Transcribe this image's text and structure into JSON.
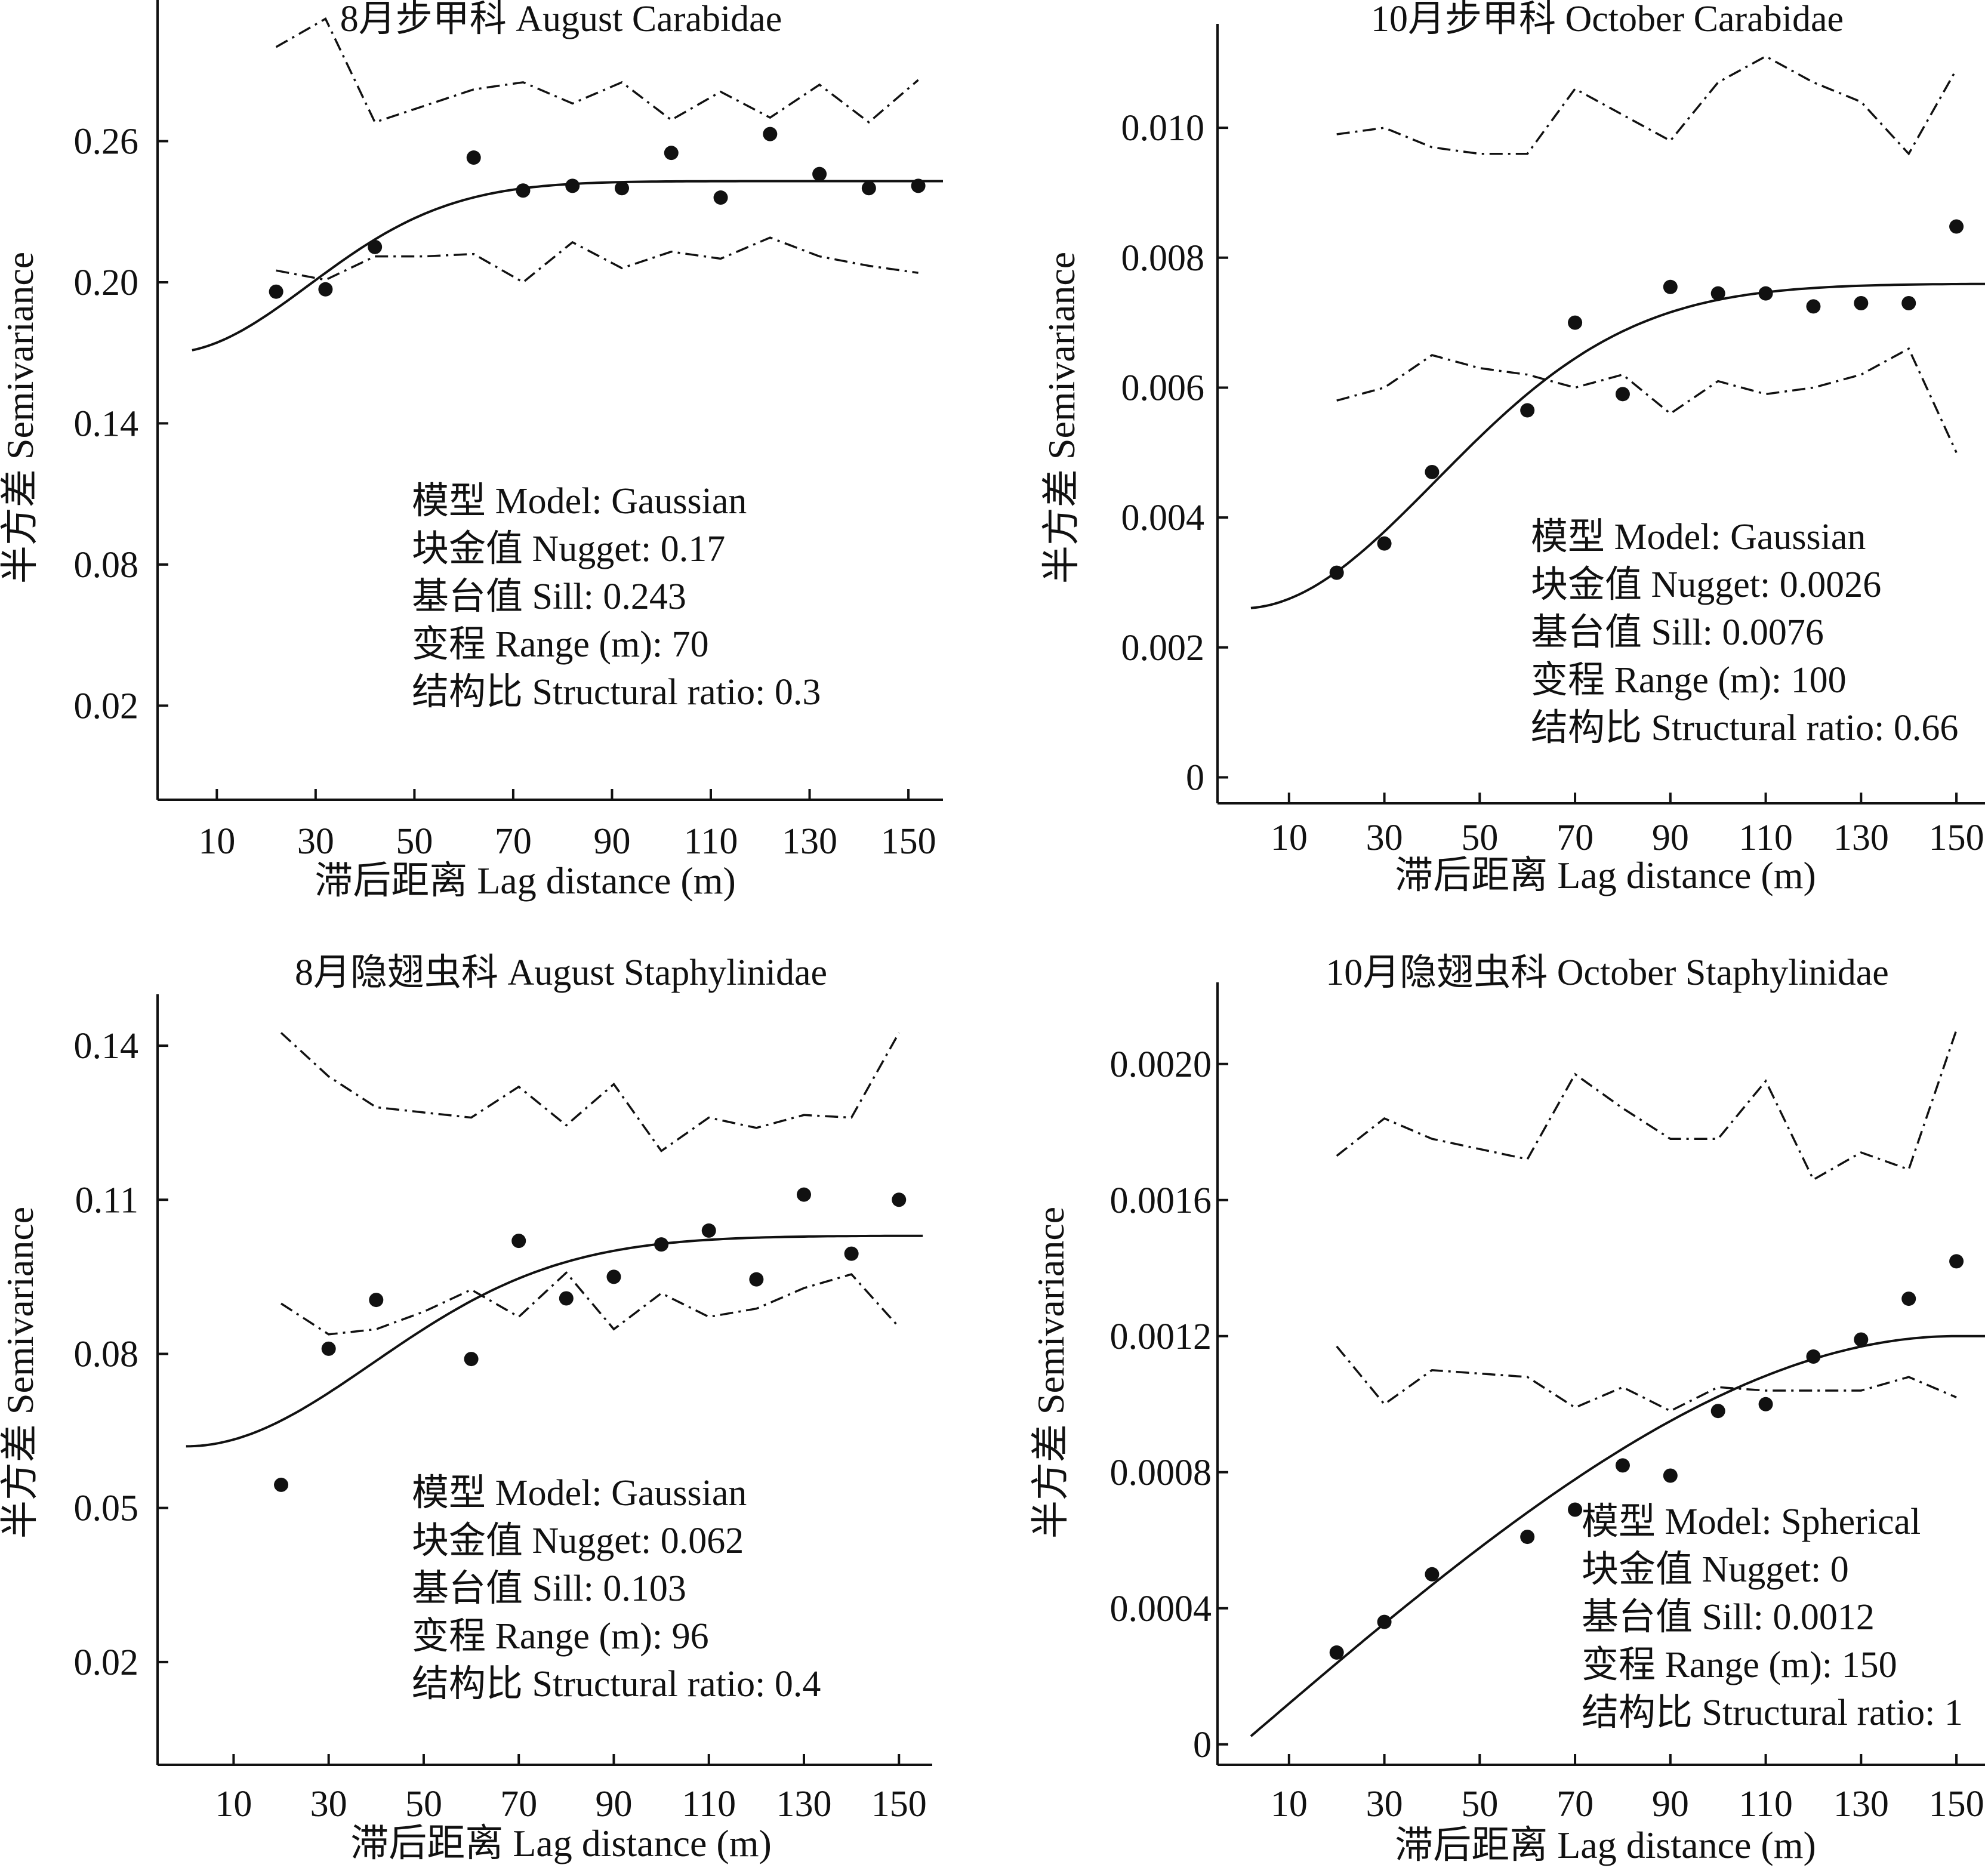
{
  "chart_data": [
    {
      "type": "scatter",
      "title": "8月步甲科 August Carabidae",
      "xlabel": "滞后距离 Lag distance (m)",
      "ylabel": "半方差 Semivariance",
      "xlim": [
        -2,
        157
      ],
      "ylim": [
        -0.02,
        0.32
      ],
      "xticks": [
        10,
        30,
        50,
        70,
        90,
        110,
        130,
        150
      ],
      "yticks": [
        0.02,
        0.08,
        0.14,
        0.2,
        0.26
      ],
      "ytick_labels": [
        "0.02",
        "0.08",
        "0.14",
        "0.20",
        "0.26"
      ],
      "series": [
        {
          "role": "points",
          "x": [
            22,
            32,
            42,
            62,
            72,
            82,
            92,
            102,
            112,
            122,
            132,
            142,
            152
          ],
          "y": [
            0.196,
            0.197,
            0.215,
            0.253,
            0.239,
            0.241,
            0.24,
            0.255,
            0.236,
            0.263,
            0.246,
            0.24,
            0.241
          ]
        },
        {
          "role": "model",
          "model": "gaussian",
          "nugget": 0.17,
          "sill": 0.243,
          "range": 70,
          "x_start": 5,
          "x_end": 157
        },
        {
          "role": "upper-envelope",
          "x": [
            22,
            32,
            42,
            52,
            62,
            72,
            82,
            92,
            102,
            112,
            122,
            132,
            142,
            152
          ],
          "y": [
            0.3,
            0.312,
            0.268,
            0.275,
            0.282,
            0.285,
            0.276,
            0.285,
            0.269,
            0.281,
            0.27,
            0.284,
            0.268,
            0.286
          ]
        },
        {
          "role": "lower-envelope",
          "x": [
            22,
            32,
            42,
            52,
            62,
            72,
            82,
            92,
            102,
            112,
            122,
            132,
            142,
            152
          ],
          "y": [
            0.205,
            0.201,
            0.211,
            0.211,
            0.212,
            0.2,
            0.217,
            0.206,
            0.213,
            0.21,
            0.219,
            0.211,
            0.207,
            0.204
          ]
        }
      ],
      "annotations": [
        "模型 Model: Gaussian",
        "块金值 Nugget: 0.17",
        "基台值 Sill: 0.243",
        "变程 Range (m): 70",
        "结构比 Structural ratio: 0.3"
      ]
    },
    {
      "type": "scatter",
      "title": "10月步甲科 October Carabidae",
      "xlabel": "滞后距离 Lag distance (m)",
      "ylabel": "半方差 Semivariance",
      "xlim": [
        -5,
        156
      ],
      "ylim": [
        -0.0004,
        0.0116
      ],
      "xticks": [
        10,
        30,
        50,
        70,
        90,
        110,
        130,
        150
      ],
      "yticks": [
        0,
        0.002,
        0.004,
        0.006,
        0.008,
        0.01
      ],
      "ytick_labels": [
        "0",
        "0.002",
        "0.004",
        "0.006",
        "0.008",
        "0.010"
      ],
      "series": [
        {
          "role": "points",
          "x": [
            20,
            30,
            40,
            60,
            70,
            80,
            90,
            100,
            110,
            120,
            130,
            140,
            150
          ],
          "y": [
            0.00315,
            0.0036,
            0.0047,
            0.00565,
            0.007,
            0.0059,
            0.00755,
            0.00745,
            0.00745,
            0.00725,
            0.0073,
            0.0073,
            0.00848
          ]
        },
        {
          "role": "model",
          "model": "gaussian",
          "nugget": 0.0026,
          "sill": 0.0076,
          "range": 100,
          "x_start": 2,
          "x_end": 156
        },
        {
          "role": "upper-envelope",
          "x": [
            20,
            30,
            40,
            50,
            60,
            70,
            80,
            90,
            100,
            110,
            120,
            130,
            140,
            150
          ],
          "y": [
            0.0099,
            0.01,
            0.0097,
            0.0096,
            0.0096,
            0.0106,
            0.0102,
            0.0098,
            0.0107,
            0.0111,
            0.0107,
            0.0104,
            0.0096,
            0.0109
          ]
        },
        {
          "role": "lower-envelope",
          "x": [
            20,
            30,
            40,
            50,
            60,
            70,
            80,
            90,
            100,
            110,
            120,
            130,
            140,
            150
          ],
          "y": [
            0.0058,
            0.006,
            0.0065,
            0.0063,
            0.0062,
            0.006,
            0.0062,
            0.0056,
            0.0061,
            0.0059,
            0.006,
            0.0062,
            0.0066,
            0.005
          ]
        }
      ],
      "annotations": [
        "模型 Model: Gaussian",
        "块金值 Nugget: 0.0026",
        "基台值 Sill: 0.0076",
        "变程 Range (m): 100",
        "结构比 Structural ratio: 0.66"
      ]
    },
    {
      "type": "scatter",
      "title": "8月隐翅虫科 August Staphylinidae",
      "xlabel": "滞后距离 Lag distance (m)",
      "ylabel": "半方差 Semivariance",
      "xlim": [
        -6,
        157
      ],
      "ylim": [
        0.0,
        0.15
      ],
      "xticks": [
        10,
        30,
        50,
        70,
        90,
        110,
        130,
        150
      ],
      "yticks": [
        0.02,
        0.05,
        0.08,
        0.11,
        0.14
      ],
      "ytick_labels": [
        "0.02",
        "0.05",
        "0.08",
        "0.11",
        "0.14"
      ],
      "series": [
        {
          "role": "points",
          "x": [
            20,
            30,
            40,
            60,
            70,
            80,
            90,
            100,
            110,
            120,
            130,
            140,
            150
          ],
          "y": [
            0.0545,
            0.081,
            0.0905,
            0.079,
            0.102,
            0.0908,
            0.095,
            0.1013,
            0.104,
            0.0945,
            0.111,
            0.0995,
            0.11
          ]
        },
        {
          "role": "model",
          "model": "gaussian",
          "nugget": 0.062,
          "sill": 0.103,
          "range": 96,
          "x_start": 0,
          "x_end": 155
        },
        {
          "role": "upper-envelope",
          "x": [
            20,
            30,
            40,
            50,
            60,
            70,
            80,
            90,
            100,
            110,
            120,
            130,
            140,
            150
          ],
          "y": [
            0.1425,
            0.134,
            0.128,
            0.127,
            0.126,
            0.132,
            0.1245,
            0.1325,
            0.1195,
            0.126,
            0.124,
            0.1265,
            0.126,
            0.1425
          ]
        },
        {
          "role": "lower-envelope",
          "x": [
            20,
            30,
            40,
            50,
            60,
            70,
            80,
            90,
            100,
            110,
            120,
            130,
            140,
            150
          ],
          "y": [
            0.0898,
            0.0838,
            0.0848,
            0.0882,
            0.0925,
            0.0872,
            0.0958,
            0.0848,
            0.0918,
            0.0872,
            0.0888,
            0.0928,
            0.0955,
            0.0852
          ]
        }
      ],
      "annotations": [
        "模型 Model: Gaussian",
        "块金值 Nugget: 0.062",
        "基台值 Sill: 0.103",
        "变程 Range (m): 96",
        "结构比 Structural ratio: 0.4"
      ]
    },
    {
      "type": "scatter",
      "title": "10月隐翅虫科 October Staphylinidae",
      "xlabel": "滞后距离 Lag distance (m)",
      "ylabel": "半方差 Semivariance",
      "xlim": [
        -5,
        156
      ],
      "ylim": [
        -6e-05,
        0.00224
      ],
      "xticks": [
        10,
        30,
        50,
        70,
        90,
        110,
        130,
        150
      ],
      "yticks": [
        0,
        0.0004,
        0.0008,
        0.0012,
        0.0016,
        0.002
      ],
      "ytick_labels": [
        "0",
        "0.0004",
        "0.0008",
        "0.0012",
        "0.0016",
        "0.0020"
      ],
      "series": [
        {
          "role": "points",
          "x": [
            20,
            30,
            40,
            60,
            70,
            80,
            90,
            100,
            110,
            120,
            130,
            140,
            150
          ],
          "y": [
            0.00027,
            0.00036,
            0.0005,
            0.00061,
            0.00069,
            0.00082,
            0.00079,
            0.00098,
            0.001,
            0.00114,
            0.00119,
            0.00131,
            0.00142
          ]
        },
        {
          "role": "model",
          "model": "spherical",
          "nugget": 0,
          "sill": 0.0012,
          "range": 150,
          "x_start": 2,
          "x_end": 156
        },
        {
          "role": "upper-envelope",
          "x": [
            20,
            30,
            40,
            50,
            60,
            70,
            80,
            90,
            100,
            110,
            120,
            130,
            140,
            150
          ],
          "y": [
            0.00173,
            0.00184,
            0.00178,
            0.00175,
            0.00172,
            0.00197,
            0.00187,
            0.00178,
            0.00178,
            0.00195,
            0.00166,
            0.00174,
            0.00169,
            0.0021
          ]
        },
        {
          "role": "lower-envelope",
          "x": [
            20,
            30,
            40,
            50,
            60,
            70,
            80,
            90,
            100,
            110,
            120,
            130,
            140,
            150
          ],
          "y": [
            0.00117,
            0.001,
            0.0011,
            0.00109,
            0.00108,
            0.00099,
            0.00105,
            0.00098,
            0.00105,
            0.00104,
            0.00104,
            0.00104,
            0.00108,
            0.00102
          ]
        }
      ],
      "annotations": [
        "模型 Model: Spherical",
        "块金值 Nugget: 0",
        "基台值 Sill: 0.0012",
        "变程 Range (m): 150",
        "结构比 Structural ratio: 1"
      ]
    }
  ]
}
